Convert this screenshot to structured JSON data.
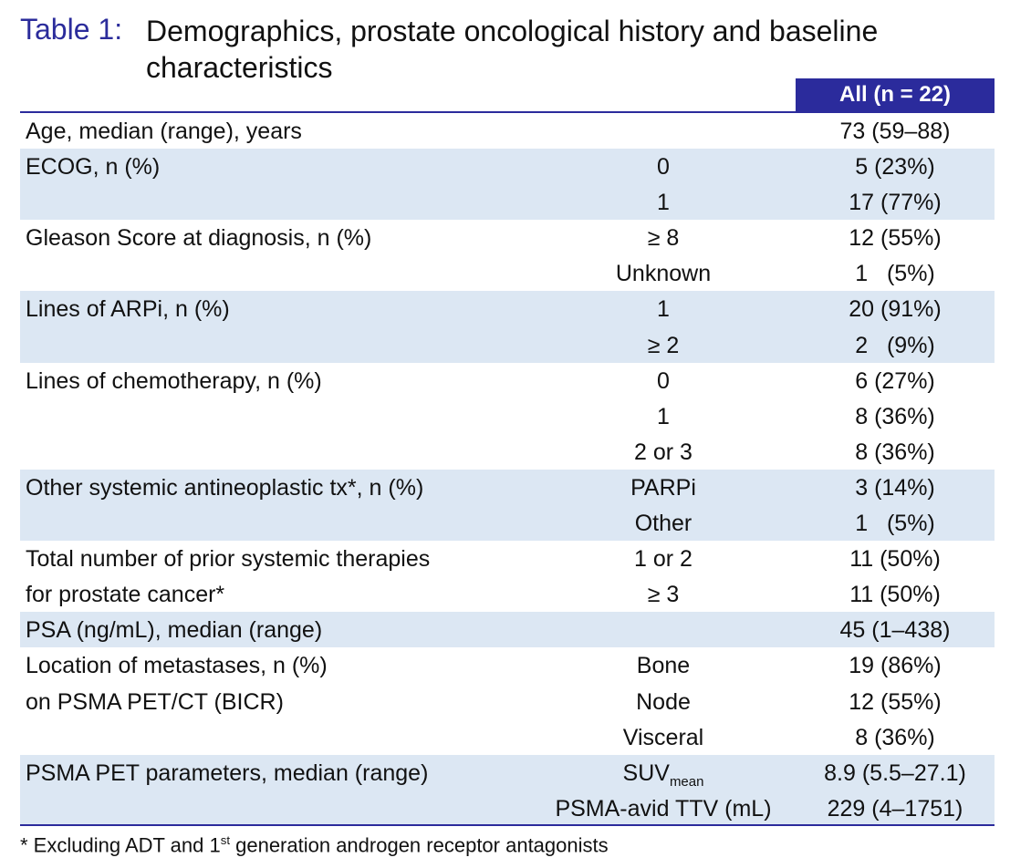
{
  "title": {
    "label": "Table 1:",
    "text": "Demographics, prostate oncological history and baseline characteristics"
  },
  "header": {
    "column": "All (n = 22)"
  },
  "groups": [
    {
      "shaded": false,
      "rows": [
        {
          "label": "Age, median (range), years",
          "sub": "",
          "value": "73 (59–88)"
        }
      ]
    },
    {
      "shaded": true,
      "rows": [
        {
          "label": "ECOG, n (%)",
          "sub": "0",
          "value": "5 (23%)"
        },
        {
          "label": "",
          "sub": "1",
          "value": "17 (77%)"
        }
      ]
    },
    {
      "shaded": false,
      "rows": [
        {
          "label": "Gleason Score at diagnosis, n (%)",
          "sub": "≥ 8",
          "value": "12 (55%)"
        },
        {
          "label": "",
          "sub": "Unknown",
          "value": "1   (5%)"
        }
      ]
    },
    {
      "shaded": true,
      "rows": [
        {
          "label": "Lines of ARPi, n (%)",
          "sub": "1",
          "value": "20 (91%)"
        },
        {
          "label": "",
          "sub": "≥ 2",
          "value": "2   (9%)"
        }
      ]
    },
    {
      "shaded": false,
      "rows": [
        {
          "label": "Lines of chemotherapy, n (%)",
          "sub": "0",
          "value": "6 (27%)"
        },
        {
          "label": "",
          "sub": "1",
          "value": "8 (36%)"
        },
        {
          "label": "",
          "sub": "2 or 3",
          "value": "8 (36%)"
        }
      ]
    },
    {
      "shaded": true,
      "rows": [
        {
          "label": "Other systemic antineoplastic tx*, n (%)",
          "sub": "PARPi",
          "value": "3 (14%)"
        },
        {
          "label": "",
          "sub": "Other",
          "value": "1   (5%)"
        }
      ]
    },
    {
      "shaded": false,
      "rows": [
        {
          "label": "Total number of prior systemic therapies",
          "sub": "1 or 2",
          "value": "11 (50%)"
        },
        {
          "label": "for prostate cancer*",
          "sub": "≥ 3",
          "value": "11 (50%)"
        }
      ]
    },
    {
      "shaded": true,
      "rows": [
        {
          "label": "PSA (ng/mL), median (range)",
          "sub": "",
          "value": "45 (1–438)"
        }
      ]
    },
    {
      "shaded": false,
      "rows": [
        {
          "label": "Location of metastases, n (%)",
          "sub": "Bone",
          "value": "19 (86%)"
        },
        {
          "label": "on PSMA PET/CT (BICR)",
          "sub": "Node",
          "value": "12 (55%)"
        },
        {
          "label": "",
          "sub": "Visceral",
          "value": "8 (36%)"
        }
      ]
    },
    {
      "shaded": true,
      "rows": [
        {
          "label": "PSMA PET parameters, median (range)",
          "sub": "SUV",
          "sub_subscript": "mean",
          "value": "8.9 (5.5–27.1)"
        },
        {
          "label": "",
          "sub": "PSMA-avid TTV (mL)",
          "value": "229 (4–1751)"
        }
      ]
    }
  ],
  "footnote": {
    "prefix": "* Excluding ADT and 1",
    "superscript": "st",
    "suffix": " generation androgen receptor antagonists"
  }
}
